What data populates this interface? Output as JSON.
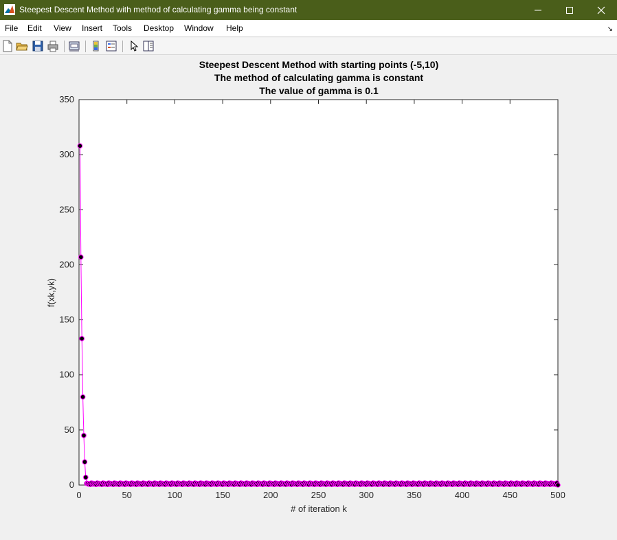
{
  "window": {
    "title": "Steepest Descent Method with method of calculating gamma being constant",
    "titlebar_color": "#4a5e1a"
  },
  "menu": {
    "items": [
      "File",
      "Edit",
      "View",
      "Insert",
      "Tools",
      "Desktop",
      "Window",
      "Help"
    ]
  },
  "toolbar": {
    "icons": [
      "new-figure-icon",
      "open-file-icon",
      "save-icon",
      "print-icon",
      "link-plot-icon",
      "colorbar-icon",
      "legend-icon",
      "pointer-icon",
      "property-inspector-icon"
    ]
  },
  "chart_data": {
    "type": "line",
    "title": [
      "Steepest Descent Method with starting points (-5,10)",
      "The method of calculating gamma is constant",
      "The value of gamma is 0.1"
    ],
    "xlabel": "# of iteration k",
    "ylabel": "f(xk,yk)",
    "xlim": [
      0,
      500
    ],
    "ylim": [
      0,
      350
    ],
    "xticks": [
      0,
      50,
      100,
      150,
      200,
      250,
      300,
      350,
      400,
      450,
      500
    ],
    "yticks": [
      0,
      50,
      100,
      150,
      200,
      250,
      300,
      350
    ],
    "grid": false,
    "line_color": "#ff00ff",
    "marker_fill": "#000000",
    "marker_edge": "#ff00ff",
    "series": [
      {
        "x": [
          1,
          2,
          3,
          4,
          5,
          6,
          7,
          8
        ],
        "y": [
          308,
          207,
          133,
          80,
          45,
          21,
          7,
          1.5
        ],
        "tail": {
          "x_start": 9,
          "x_end": 500,
          "pattern": [
            1.5,
            0.8,
            1.2,
            0.5,
            1.8,
            0.9
          ],
          "y_last": 0
        }
      }
    ]
  }
}
